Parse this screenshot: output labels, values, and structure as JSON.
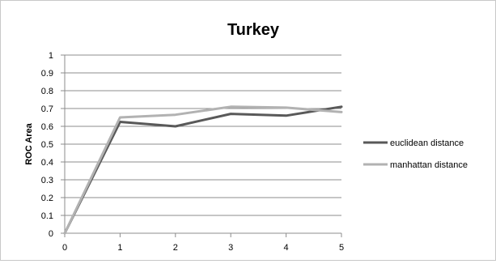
{
  "chart_data": {
    "type": "line",
    "title": "Turkey",
    "xlabel": "",
    "ylabel": "ROC Area",
    "x": [
      0,
      1,
      2,
      3,
      4,
      5
    ],
    "xlim": [
      0,
      5
    ],
    "ylim": [
      0,
      1
    ],
    "x_ticks": [
      "0",
      "1",
      "2",
      "3",
      "4",
      "5"
    ],
    "y_ticks": [
      "0",
      "0.1",
      "0.2",
      "0.3",
      "0.4",
      "0.5",
      "0.6",
      "0.7",
      "0.8",
      "0.9",
      "1"
    ],
    "grid": "horizontal",
    "legend_position": "right",
    "series": [
      {
        "name": "euclidean distance",
        "color": "#595959",
        "values": [
          0.0,
          0.625,
          0.6,
          0.67,
          0.66,
          0.71
        ]
      },
      {
        "name": "manhattan distance",
        "color": "#b2b2b2",
        "values": [
          0.0,
          0.65,
          0.665,
          0.71,
          0.705,
          0.68
        ]
      }
    ]
  }
}
